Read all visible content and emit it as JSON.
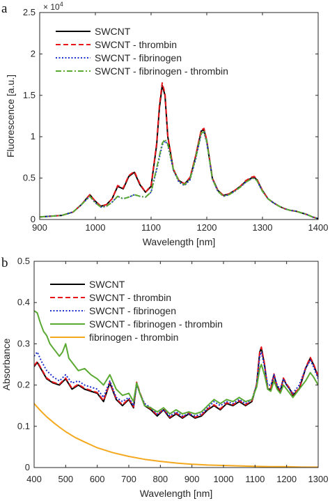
{
  "figure": {
    "panels": [
      {
        "letter": "a",
        "exponent": "× 10",
        "exponent_power": "4"
      },
      {
        "letter": "b"
      }
    ]
  },
  "chart_data": [
    {
      "type": "line",
      "xlabel": "Wavelength [nm]",
      "ylabel": "Fluorescence [a.u.]",
      "xlim": [
        900,
        1400
      ],
      "ylim": [
        0,
        25000
      ],
      "xticks": [
        900,
        1000,
        1100,
        1200,
        1300,
        1400
      ],
      "yticks": [
        0,
        5000,
        10000,
        15000,
        20000,
        25000
      ],
      "ytick_labels": [
        "0",
        "0.5",
        "1",
        "1.5",
        "2",
        "2.5"
      ],
      "y_multiplier": "× 10^4",
      "legend_position": "top-left",
      "grid": false,
      "series": [
        {
          "name": "SWCNT",
          "color": "#000000",
          "dash": "solid",
          "x": [
            900,
            920,
            940,
            960,
            975,
            990,
            1000,
            1010,
            1020,
            1030,
            1040,
            1050,
            1060,
            1070,
            1080,
            1090,
            1100,
            1110,
            1115,
            1120,
            1125,
            1130,
            1140,
            1150,
            1160,
            1170,
            1180,
            1190,
            1195,
            1200,
            1210,
            1220,
            1230,
            1240,
            1250,
            1260,
            1270,
            1280,
            1285,
            1290,
            1300,
            1310,
            1320,
            1330,
            1340,
            1350,
            1360,
            1370,
            1380,
            1390,
            1400
          ],
          "y": [
            300,
            400,
            500,
            900,
            1800,
            3000,
            2200,
            1600,
            1800,
            2500,
            4000,
            3700,
            5200,
            5700,
            4200,
            3300,
            4000,
            9000,
            13500,
            16200,
            15000,
            10000,
            6000,
            4700,
            4300,
            5000,
            7600,
            10700,
            10800,
            9500,
            5000,
            3500,
            2900,
            3100,
            3500,
            4000,
            4600,
            5000,
            5100,
            4800,
            3500,
            2500,
            2000,
            1600,
            1300,
            1100,
            1000,
            800,
            600,
            300,
            100
          ]
        },
        {
          "name": "SWCNT - thrombin",
          "color": "#e8141a",
          "dash": "dashed",
          "x": [
            900,
            920,
            940,
            960,
            975,
            990,
            1000,
            1010,
            1020,
            1030,
            1040,
            1050,
            1060,
            1070,
            1080,
            1090,
            1100,
            1110,
            1115,
            1120,
            1125,
            1130,
            1140,
            1150,
            1160,
            1170,
            1180,
            1190,
            1195,
            1200,
            1210,
            1220,
            1230,
            1240,
            1250,
            1260,
            1270,
            1280,
            1285,
            1290,
            1300,
            1310,
            1320,
            1330,
            1340,
            1350,
            1360,
            1370,
            1380,
            1390,
            1400
          ],
          "y": [
            300,
            400,
            500,
            900,
            1800,
            3000,
            2200,
            1600,
            1800,
            2500,
            4100,
            3800,
            5300,
            5800,
            4300,
            3300,
            4100,
            9200,
            13800,
            16500,
            15200,
            10100,
            6100,
            4700,
            4300,
            5100,
            7700,
            10800,
            11000,
            9600,
            5000,
            3500,
            2900,
            3100,
            3500,
            4000,
            4700,
            5100,
            5200,
            4900,
            3500,
            2500,
            2000,
            1600,
            1300,
            1100,
            1000,
            800,
            600,
            300,
            100
          ]
        },
        {
          "name": "SWCNT - fibrinogen",
          "color": "#1c2fcf",
          "dash": "dotted",
          "x": [
            900,
            920,
            940,
            960,
            975,
            990,
            1000,
            1010,
            1020,
            1030,
            1040,
            1050,
            1060,
            1070,
            1080,
            1090,
            1100,
            1110,
            1120,
            1125,
            1130,
            1140,
            1150,
            1160,
            1170,
            1180,
            1190,
            1195,
            1200,
            1210,
            1220,
            1230,
            1240,
            1250,
            1260,
            1270,
            1280,
            1285,
            1290,
            1300,
            1310,
            1320,
            1330,
            1340,
            1350,
            1360,
            1370,
            1380,
            1390,
            1400
          ],
          "y": [
            300,
            400,
            500,
            900,
            1800,
            2800,
            2000,
            1500,
            1600,
            2100,
            2800,
            2500,
            2700,
            3000,
            2800,
            2700,
            3300,
            6000,
            9000,
            9500,
            9000,
            6000,
            4500,
            4100,
            4800,
            7300,
            10300,
            10500,
            9300,
            4900,
            3400,
            2800,
            3000,
            3400,
            3900,
            4500,
            4900,
            5000,
            4700,
            3400,
            2500,
            2000,
            1600,
            1300,
            1100,
            1000,
            800,
            600,
            300,
            100
          ]
        },
        {
          "name": "SWCNT - fibrinogen - thrombin",
          "color": "#5aa932",
          "dash": "dashdot",
          "x": [
            900,
            920,
            940,
            960,
            975,
            990,
            1000,
            1010,
            1020,
            1030,
            1040,
            1050,
            1060,
            1070,
            1080,
            1090,
            1100,
            1110,
            1120,
            1125,
            1130,
            1140,
            1150,
            1160,
            1170,
            1180,
            1190,
            1195,
            1200,
            1210,
            1220,
            1230,
            1240,
            1250,
            1260,
            1270,
            1280,
            1285,
            1290,
            1300,
            1310,
            1320,
            1330,
            1340,
            1350,
            1360,
            1370,
            1380,
            1390,
            1400
          ],
          "y": [
            300,
            400,
            500,
            900,
            1800,
            2800,
            2000,
            1500,
            1600,
            2100,
            2800,
            2500,
            2700,
            3000,
            2800,
            2700,
            3300,
            6200,
            9200,
            9700,
            9100,
            6100,
            4600,
            4200,
            4900,
            7400,
            10400,
            10600,
            9400,
            4900,
            3400,
            2800,
            3000,
            3400,
            3900,
            4500,
            4900,
            5000,
            4700,
            3400,
            2500,
            2000,
            1600,
            1300,
            1100,
            1000,
            800,
            600,
            300,
            100
          ]
        }
      ]
    },
    {
      "type": "line",
      "xlabel": "Wavelength [nm]",
      "ylabel": "Absorbance",
      "xlim": [
        400,
        1300
      ],
      "ylim": [
        0,
        0.5
      ],
      "xticks": [
        400,
        500,
        600,
        700,
        800,
        900,
        1000,
        1100,
        1200,
        1300
      ],
      "yticks": [
        0,
        0.1,
        0.2,
        0.3,
        0.4,
        0.5
      ],
      "ytick_labels": [
        "0",
        "0.1",
        "0.2",
        "0.3",
        "0.4",
        "0.5"
      ],
      "legend_position": "top-left",
      "grid": false,
      "series": [
        {
          "name": "SWCNT",
          "color": "#000000",
          "dash": "solid",
          "x": [
            400,
            410,
            425,
            440,
            460,
            480,
            500,
            520,
            540,
            560,
            580,
            600,
            620,
            640,
            660,
            680,
            700,
            715,
            725,
            735,
            750,
            770,
            790,
            810,
            830,
            850,
            870,
            890,
            910,
            930,
            950,
            970,
            990,
            1010,
            1030,
            1050,
            1070,
            1090,
            1105,
            1115,
            1120,
            1130,
            1140,
            1150,
            1160,
            1170,
            1180,
            1190,
            1200,
            1210,
            1220,
            1240,
            1260,
            1275,
            1285,
            1300
          ],
          "y": [
            0.245,
            0.255,
            0.235,
            0.215,
            0.205,
            0.2,
            0.215,
            0.19,
            0.2,
            0.19,
            0.185,
            0.18,
            0.16,
            0.205,
            0.165,
            0.15,
            0.165,
            0.145,
            0.205,
            0.18,
            0.15,
            0.14,
            0.125,
            0.14,
            0.12,
            0.13,
            0.12,
            0.13,
            0.12,
            0.125,
            0.14,
            0.15,
            0.14,
            0.155,
            0.15,
            0.16,
            0.15,
            0.16,
            0.2,
            0.28,
            0.29,
            0.25,
            0.19,
            0.19,
            0.225,
            0.195,
            0.185,
            0.215,
            0.2,
            0.19,
            0.175,
            0.19,
            0.24,
            0.265,
            0.25,
            0.22
          ]
        },
        {
          "name": "SWCNT - thrombin",
          "color": "#e8141a",
          "dash": "dashed",
          "x": [
            400,
            410,
            425,
            440,
            460,
            480,
            500,
            520,
            540,
            560,
            580,
            600,
            620,
            640,
            660,
            680,
            700,
            715,
            725,
            735,
            750,
            770,
            790,
            810,
            830,
            850,
            870,
            890,
            910,
            930,
            950,
            970,
            990,
            1010,
            1030,
            1050,
            1070,
            1090,
            1105,
            1115,
            1120,
            1130,
            1140,
            1150,
            1160,
            1170,
            1180,
            1190,
            1200,
            1210,
            1220,
            1240,
            1260,
            1275,
            1285,
            1300
          ],
          "y": [
            0.247,
            0.257,
            0.237,
            0.217,
            0.207,
            0.202,
            0.217,
            0.192,
            0.202,
            0.192,
            0.187,
            0.182,
            0.162,
            0.207,
            0.167,
            0.152,
            0.167,
            0.147,
            0.207,
            0.182,
            0.152,
            0.142,
            0.127,
            0.142,
            0.122,
            0.132,
            0.122,
            0.132,
            0.122,
            0.127,
            0.142,
            0.152,
            0.142,
            0.157,
            0.152,
            0.162,
            0.152,
            0.162,
            0.202,
            0.282,
            0.292,
            0.252,
            0.192,
            0.192,
            0.227,
            0.197,
            0.187,
            0.217,
            0.202,
            0.192,
            0.177,
            0.192,
            0.242,
            0.267,
            0.252,
            0.222
          ]
        },
        {
          "name": "SWCNT - fibrinogen",
          "color": "#1c2fcf",
          "dash": "dotted",
          "x": [
            400,
            410,
            425,
            440,
            460,
            480,
            500,
            520,
            540,
            560,
            580,
            600,
            620,
            640,
            660,
            680,
            700,
            715,
            725,
            735,
            750,
            770,
            790,
            810,
            830,
            850,
            870,
            890,
            910,
            930,
            950,
            970,
            990,
            1010,
            1030,
            1050,
            1070,
            1090,
            1105,
            1115,
            1120,
            1130,
            1140,
            1150,
            1160,
            1170,
            1180,
            1190,
            1200,
            1210,
            1220,
            1240,
            1260,
            1275,
            1285,
            1300
          ],
          "y": [
            0.27,
            0.28,
            0.255,
            0.235,
            0.22,
            0.21,
            0.225,
            0.205,
            0.21,
            0.2,
            0.195,
            0.19,
            0.17,
            0.21,
            0.17,
            0.16,
            0.17,
            0.15,
            0.2,
            0.18,
            0.155,
            0.145,
            0.13,
            0.14,
            0.125,
            0.135,
            0.125,
            0.13,
            0.125,
            0.13,
            0.145,
            0.16,
            0.15,
            0.16,
            0.155,
            0.165,
            0.155,
            0.165,
            0.2,
            0.27,
            0.28,
            0.245,
            0.2,
            0.2,
            0.225,
            0.2,
            0.19,
            0.215,
            0.2,
            0.19,
            0.18,
            0.2,
            0.24,
            0.26,
            0.245,
            0.215
          ]
        },
        {
          "name": "SWCNT - fibrinogen - thrombin",
          "color": "#5aa932",
          "dash": "solid",
          "x": [
            400,
            410,
            420,
            430,
            440,
            450,
            460,
            470,
            480,
            490,
            500,
            510,
            520,
            540,
            560,
            580,
            600,
            620,
            640,
            660,
            680,
            700,
            715,
            725,
            735,
            750,
            770,
            790,
            810,
            830,
            850,
            870,
            890,
            910,
            930,
            950,
            970,
            990,
            1010,
            1030,
            1050,
            1070,
            1090,
            1105,
            1115,
            1120,
            1130,
            1140,
            1150,
            1160,
            1170,
            1180,
            1190,
            1200,
            1220,
            1240,
            1260,
            1275,
            1285,
            1300
          ],
          "y": [
            0.38,
            0.375,
            0.35,
            0.33,
            0.32,
            0.3,
            0.29,
            0.28,
            0.27,
            0.28,
            0.3,
            0.265,
            0.255,
            0.235,
            0.24,
            0.225,
            0.215,
            0.2,
            0.225,
            0.19,
            0.175,
            0.18,
            0.16,
            0.205,
            0.18,
            0.15,
            0.145,
            0.135,
            0.145,
            0.13,
            0.14,
            0.13,
            0.135,
            0.13,
            0.135,
            0.15,
            0.165,
            0.155,
            0.165,
            0.16,
            0.17,
            0.16,
            0.165,
            0.195,
            0.24,
            0.25,
            0.225,
            0.19,
            0.185,
            0.21,
            0.19,
            0.18,
            0.2,
            0.19,
            0.17,
            0.19,
            0.21,
            0.23,
            0.22,
            0.2
          ]
        },
        {
          "name": "fibrinogen - thrombin",
          "color": "#f4a81d",
          "dash": "solid",
          "x": [
            400,
            420,
            440,
            460,
            480,
            500,
            530,
            560,
            600,
            650,
            700,
            750,
            800,
            850,
            900,
            950,
            1000,
            1050,
            1100,
            1150,
            1200,
            1250,
            1300
          ],
          "y": [
            0.155,
            0.138,
            0.123,
            0.11,
            0.098,
            0.087,
            0.073,
            0.062,
            0.048,
            0.036,
            0.027,
            0.02,
            0.015,
            0.011,
            0.008,
            0.006,
            0.005,
            0.004,
            0.003,
            0.002,
            0.002,
            0.001,
            0.001
          ]
        }
      ]
    }
  ]
}
